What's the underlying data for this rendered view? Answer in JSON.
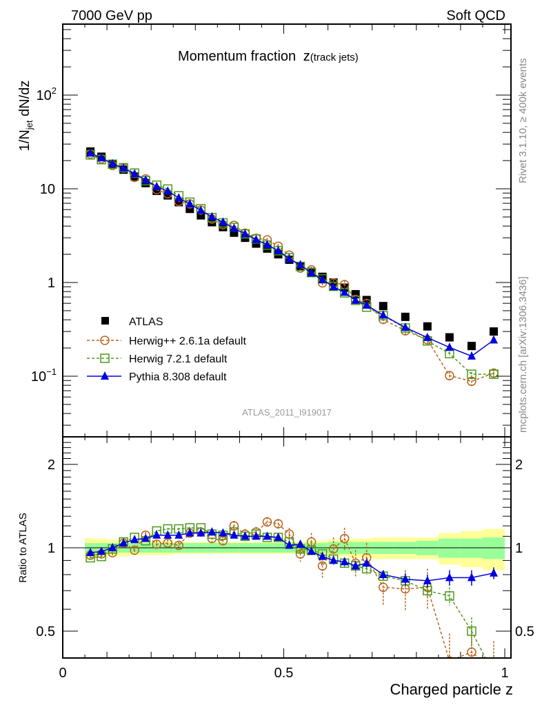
{
  "chart_data": {
    "type": "scatter",
    "header_left": "7000 GeV pp",
    "header_right": "Soft QCD",
    "title": "Momentum fraction",
    "title_var": "z",
    "title_suffix": "(track jets)",
    "ylabel_main": "1/N",
    "ylabel_main_sub": "jet",
    "ylabel_main_rest": " dN/dz",
    "ylabel_ratio": "Ratio to ATLAS",
    "xlabel": "Charged particle z",
    "analysis_id": "ATLAS_2011_I919017",
    "side_text_top": "Rivet 3.1.10, ≥ 400k events",
    "side_text_bottom": "mcplots.cern.ch [arXiv:1306.3436]",
    "xlim": [
      0,
      1.015
    ],
    "ylim_main": [
      0.025,
      800
    ],
    "ylim_ratio": [
      0.4,
      2.5
    ],
    "yscale": "log",
    "x_ticks": [
      {
        "v": 0,
        "label": "0"
      },
      {
        "v": 0.5,
        "label": "0.5"
      },
      {
        "v": 1,
        "label": "1"
      }
    ],
    "y_ticks_main": [
      {
        "v": 0.1,
        "label": "10",
        "sup": "−1"
      },
      {
        "v": 1,
        "label": "1",
        "sup": ""
      },
      {
        "v": 10,
        "label": "10",
        "sup": ""
      },
      {
        "v": 100,
        "label": "10",
        "sup": "2"
      }
    ],
    "y_ticks_ratio": [
      {
        "v": 0.5,
        "label": "0.5"
      },
      {
        "v": 1,
        "label": "1"
      },
      {
        "v": 2,
        "label": "2"
      }
    ],
    "x": [
      0.0625,
      0.0875,
      0.1125,
      0.1375,
      0.1625,
      0.1875,
      0.2125,
      0.2375,
      0.2625,
      0.2875,
      0.3125,
      0.3375,
      0.3625,
      0.3875,
      0.4125,
      0.4375,
      0.4625,
      0.4875,
      0.5125,
      0.5375,
      0.5625,
      0.5875,
      0.6125,
      0.6375,
      0.6625,
      0.6875,
      0.725,
      0.775,
      0.825,
      0.875,
      0.925,
      0.975
    ],
    "atlas": [
      25,
      22,
      18.5,
      16,
      13.5,
      11.5,
      9.5,
      8.5,
      7.2,
      6.1,
      5.2,
      4.4,
      3.9,
      3.4,
      3.0,
      2.6,
      2.3,
      2.0,
      1.75,
      1.5,
      1.3,
      1.15,
      1.0,
      0.88,
      0.75,
      0.65,
      0.56,
      0.43,
      0.34,
      0.26,
      0.21,
      0.3
    ],
    "band_inner": [
      0.04,
      0.04,
      0.04,
      0.04,
      0.04,
      0.04,
      0.04,
      0.04,
      0.04,
      0.04,
      0.04,
      0.04,
      0.04,
      0.04,
      0.04,
      0.04,
      0.04,
      0.04,
      0.04,
      0.04,
      0.04,
      0.04,
      0.05,
      0.05,
      0.05,
      0.05,
      0.05,
      0.05,
      0.06,
      0.08,
      0.08,
      0.09
    ],
    "band_outer": [
      0.08,
      0.08,
      0.07,
      0.07,
      0.06,
      0.06,
      0.06,
      0.06,
      0.05,
      0.05,
      0.05,
      0.05,
      0.05,
      0.05,
      0.05,
      0.05,
      0.05,
      0.05,
      0.05,
      0.05,
      0.06,
      0.06,
      0.07,
      0.07,
      0.08,
      0.08,
      0.09,
      0.09,
      0.09,
      0.13,
      0.15,
      0.17
    ],
    "series": [
      {
        "name": "Herwig++ 2.6.1a default",
        "color": "#b8621b",
        "marker": "circle-open",
        "line": "dashed",
        "ratio": [
          0.94,
          0.95,
          0.96,
          1.04,
          0.98,
          1.11,
          1.03,
          1.04,
          1.02,
          1.13,
          1.14,
          1.08,
          1.06,
          1.2,
          1.12,
          1.14,
          1.24,
          1.22,
          1.12,
          0.95,
          1.05,
          0.86,
          0.99,
          1.08,
          0.88,
          0.92,
          0.72,
          0.71,
          0.72,
          0.39,
          0.42,
          0.36
        ],
        "err": [
          0.02,
          0.02,
          0.02,
          0.02,
          0.03,
          0.03,
          0.03,
          0.03,
          0.03,
          0.03,
          0.03,
          0.04,
          0.04,
          0.05,
          0.05,
          0.05,
          0.05,
          0.05,
          0.06,
          0.06,
          0.08,
          0.08,
          0.1,
          0.1,
          0.1,
          0.12,
          0.1,
          0.12,
          0.12,
          0.1,
          0.1,
          0.1
        ]
      },
      {
        "name": "Herwig 7.2.1 default",
        "color": "#4a9a1a",
        "marker": "square-open",
        "line": "dashed",
        "ratio": [
          0.92,
          0.93,
          0.99,
          1.05,
          1.09,
          1.06,
          1.15,
          1.17,
          1.17,
          1.18,
          1.18,
          1.12,
          1.11,
          1.14,
          1.1,
          1.12,
          1.09,
          1.09,
          1.05,
          0.99,
          0.98,
          0.95,
          0.91,
          0.88,
          0.86,
          0.84,
          0.79,
          0.76,
          0.7,
          0.67,
          0.5,
          0.35
        ],
        "err": [
          0.01,
          0.01,
          0.01,
          0.01,
          0.01,
          0.01,
          0.01,
          0.01,
          0.01,
          0.01,
          0.01,
          0.01,
          0.01,
          0.01,
          0.01,
          0.01,
          0.01,
          0.01,
          0.02,
          0.02,
          0.02,
          0.02,
          0.03,
          0.03,
          0.03,
          0.03,
          0.03,
          0.04,
          0.04,
          0.05,
          0.06,
          0.06
        ]
      },
      {
        "name": "Pythia 8.308 default",
        "color": "#0000e0",
        "marker": "triangle-filled",
        "line": "solid",
        "ratio": [
          0.96,
          0.97,
          1.0,
          1.04,
          1.07,
          1.08,
          1.11,
          1.11,
          1.11,
          1.13,
          1.13,
          1.14,
          1.13,
          1.11,
          1.1,
          1.1,
          1.1,
          1.09,
          1.02,
          1.03,
          0.97,
          0.93,
          0.9,
          0.89,
          0.86,
          0.88,
          0.8,
          0.77,
          0.76,
          0.78,
          0.78,
          0.81
        ],
        "err": [
          0.01,
          0.01,
          0.01,
          0.01,
          0.01,
          0.01,
          0.01,
          0.01,
          0.01,
          0.01,
          0.01,
          0.01,
          0.01,
          0.01,
          0.01,
          0.01,
          0.01,
          0.01,
          0.02,
          0.02,
          0.02,
          0.02,
          0.03,
          0.03,
          0.03,
          0.03,
          0.03,
          0.04,
          0.04,
          0.05,
          0.05,
          0.04
        ]
      }
    ],
    "legend": {
      "placement": "lower-left",
      "entries": [
        "ATLAS",
        "Herwig++ 2.6.1a default",
        "Herwig 7.2.1 default",
        "Pythia 8.308 default"
      ]
    }
  }
}
